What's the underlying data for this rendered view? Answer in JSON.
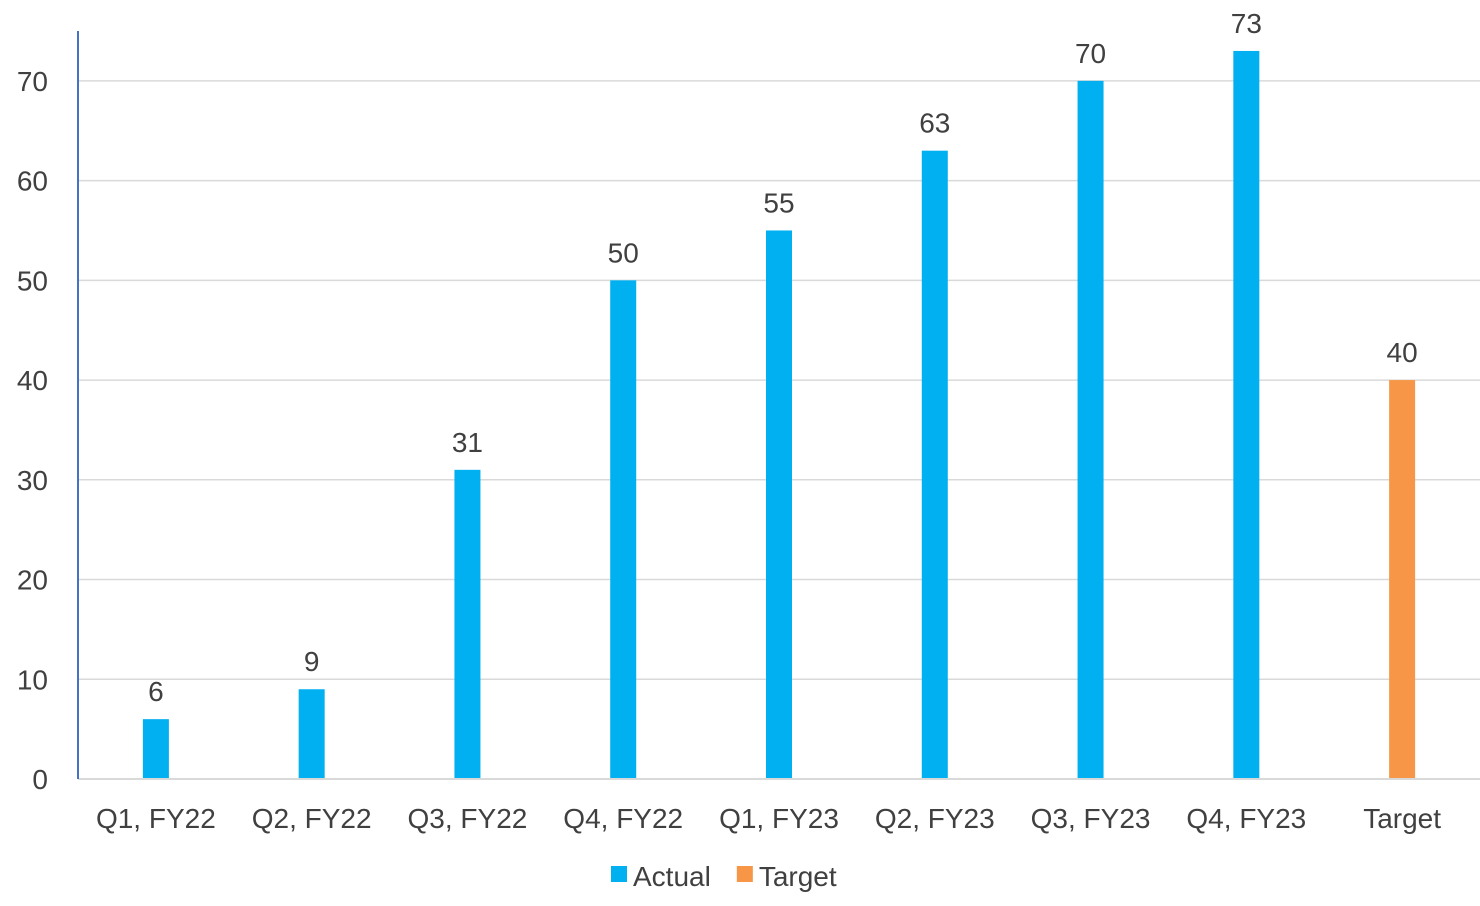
{
  "chart_data": {
    "type": "bar",
    "title": "",
    "xlabel": "",
    "ylabel": "",
    "categories": [
      "Q1, FY22",
      "Q2, FY22",
      "Q3, FY22",
      "Q4, FY22",
      "Q1, FY23",
      "Q2, FY23",
      "Q3, FY23",
      "Q4, FY23",
      "Target"
    ],
    "series": [
      {
        "name": "Actual",
        "color": "#00B0F0",
        "values": [
          6,
          9,
          31,
          50,
          55,
          63,
          70,
          73,
          null
        ]
      },
      {
        "name": "Target",
        "color": "#F79646",
        "values": [
          null,
          null,
          null,
          null,
          null,
          null,
          null,
          null,
          40
        ]
      }
    ],
    "ylim": [
      0,
      75
    ],
    "yticks": [
      0,
      10,
      20,
      30,
      40,
      50,
      60,
      70
    ],
    "grid": true,
    "legend_position": "bottom-center",
    "data_labels": true
  }
}
